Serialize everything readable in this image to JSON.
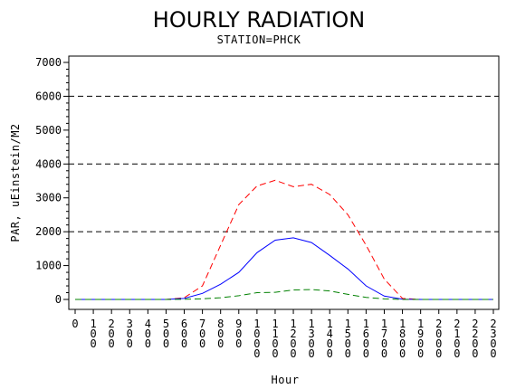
{
  "chart_data": {
    "type": "line",
    "title": "HOURLY RADIATION",
    "subtitle": "STATION=PHCK",
    "xlabel": "Hour",
    "ylabel": "PAR, uEinstein/M2",
    "x": [
      "0",
      "100",
      "200",
      "300",
      "400",
      "500",
      "600",
      "700",
      "800",
      "900",
      "1000",
      "1100",
      "1200",
      "1300",
      "1400",
      "1500",
      "1600",
      "1700",
      "1800",
      "1900",
      "2000",
      "2100",
      "2200",
      "2300"
    ],
    "ylim": [
      0,
      7000
    ],
    "yticks": [
      "0",
      "1000",
      "2000",
      "3000",
      "4000",
      "5000",
      "6000",
      "7000"
    ],
    "gridlines": [
      2000,
      4000,
      6000
    ],
    "series": [
      {
        "color": "#ff0000",
        "dash": "dashed",
        "values": [
          0,
          0,
          0,
          0,
          0,
          0,
          50,
          400,
          1600,
          2800,
          3350,
          3520,
          3330,
          3400,
          3100,
          2500,
          1600,
          600,
          30,
          0,
          0,
          0,
          0,
          0
        ]
      },
      {
        "color": "#0000ff",
        "dash": "solid",
        "values": [
          0,
          0,
          0,
          0,
          0,
          0,
          30,
          180,
          450,
          800,
          1380,
          1750,
          1820,
          1680,
          1300,
          900,
          400,
          100,
          5,
          0,
          0,
          0,
          0,
          0
        ]
      },
      {
        "color": "#008000",
        "dash": "dashed",
        "values": [
          0,
          0,
          0,
          0,
          0,
          0,
          5,
          20,
          50,
          110,
          200,
          210,
          280,
          290,
          250,
          150,
          60,
          15,
          0,
          0,
          0,
          0,
          0,
          0
        ]
      }
    ]
  }
}
